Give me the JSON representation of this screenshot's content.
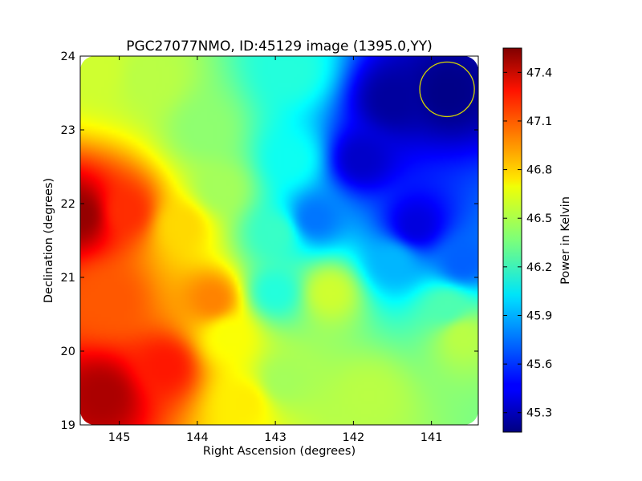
{
  "chart_data": {
    "type": "heatmap",
    "title": "PGC27077NMO, ID:45129 image (1395.0,YY)",
    "xlabel": "Right Ascension (degrees)",
    "ylabel": "Declination (degrees)",
    "xlim": [
      145.5,
      140.4
    ],
    "ylim": [
      19,
      24
    ],
    "x_ticks": [
      145,
      144,
      143,
      142,
      141
    ],
    "y_ticks": [
      19,
      20,
      21,
      22,
      23,
      24
    ],
    "colorbar": {
      "label": "Power in Kelvin",
      "range": [
        45.18,
        47.55
      ],
      "ticks": [
        45.3,
        45.6,
        45.9,
        46.2,
        46.5,
        46.8,
        47.1,
        47.4
      ],
      "colormap": "jet"
    },
    "beam_marker": {
      "shape": "circle",
      "ra": 140.8,
      "dec": 23.55,
      "radius_deg": 0.37,
      "color": "#d4d400"
    },
    "grid": false,
    "field_samples": [
      {
        "ra": 145.5,
        "dec": 21.85,
        "value": 47.5
      },
      {
        "ra": 144.9,
        "dec": 21.9,
        "value": 47.15
      },
      {
        "ra": 144.2,
        "dec": 21.7,
        "value": 46.75
      },
      {
        "ra": 145.2,
        "dec": 19.4,
        "value": 47.45
      },
      {
        "ra": 144.4,
        "dec": 19.8,
        "value": 47.2
      },
      {
        "ra": 143.8,
        "dec": 20.7,
        "value": 46.95
      },
      {
        "ra": 145.1,
        "dec": 20.7,
        "value": 47.05
      },
      {
        "ra": 145.3,
        "dec": 23.8,
        "value": 46.55
      },
      {
        "ra": 144.6,
        "dec": 23.7,
        "value": 46.5
      },
      {
        "ra": 143.9,
        "dec": 23.0,
        "value": 46.4
      },
      {
        "ra": 142.8,
        "dec": 22.6,
        "value": 46.1
      },
      {
        "ra": 142.8,
        "dec": 23.8,
        "value": 46.15
      },
      {
        "ra": 141.5,
        "dec": 23.4,
        "value": 45.25
      },
      {
        "ra": 140.8,
        "dec": 23.5,
        "value": 45.2
      },
      {
        "ra": 141.9,
        "dec": 22.6,
        "value": 45.35
      },
      {
        "ra": 141.2,
        "dec": 21.7,
        "value": 45.4
      },
      {
        "ra": 142.5,
        "dec": 21.8,
        "value": 45.75
      },
      {
        "ra": 140.6,
        "dec": 21.2,
        "value": 45.7
      },
      {
        "ra": 141.5,
        "dec": 21.2,
        "value": 45.9
      },
      {
        "ra": 143.0,
        "dec": 21.6,
        "value": 46.2
      },
      {
        "ra": 143.0,
        "dec": 20.8,
        "value": 46.15
      },
      {
        "ra": 142.3,
        "dec": 20.8,
        "value": 46.55
      },
      {
        "ra": 141.8,
        "dec": 19.4,
        "value": 46.5
      },
      {
        "ra": 140.6,
        "dec": 20.2,
        "value": 46.5
      },
      {
        "ra": 140.8,
        "dec": 20.6,
        "value": 46.25
      },
      {
        "ra": 143.4,
        "dec": 19.3,
        "value": 46.7
      },
      {
        "ra": 142.9,
        "dec": 19.6,
        "value": 46.45
      },
      {
        "ra": 143.6,
        "dec": 20.2,
        "value": 46.65
      },
      {
        "ra": 143.7,
        "dec": 22.2,
        "value": 46.45
      }
    ]
  }
}
